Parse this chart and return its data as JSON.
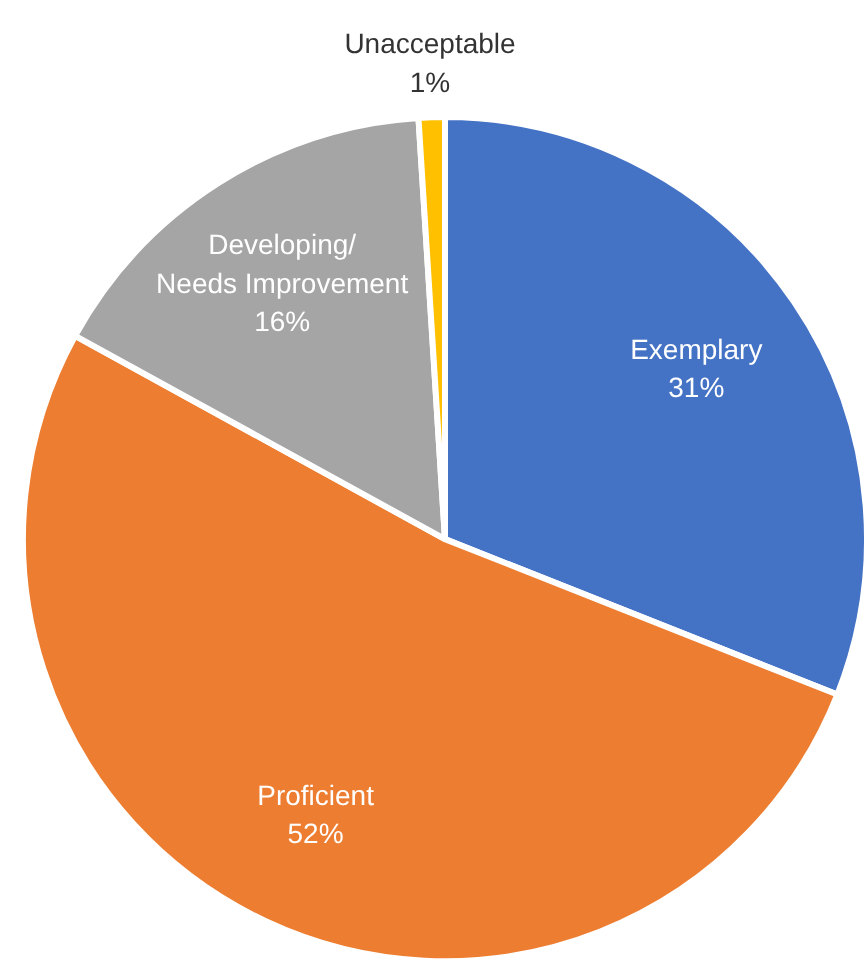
{
  "chart_data": {
    "type": "pie",
    "categories": [
      "Exemplary",
      "Proficient",
      "Developing/\nNeeds Improvement",
      "Unacceptable"
    ],
    "values": [
      31,
      52,
      16,
      1
    ],
    "value_labels": [
      "31%",
      "52%",
      "16%",
      "1%"
    ],
    "colors": [
      "#4472c4",
      "#ed7d31",
      "#a5a5a5",
      "#ffc000"
    ]
  }
}
